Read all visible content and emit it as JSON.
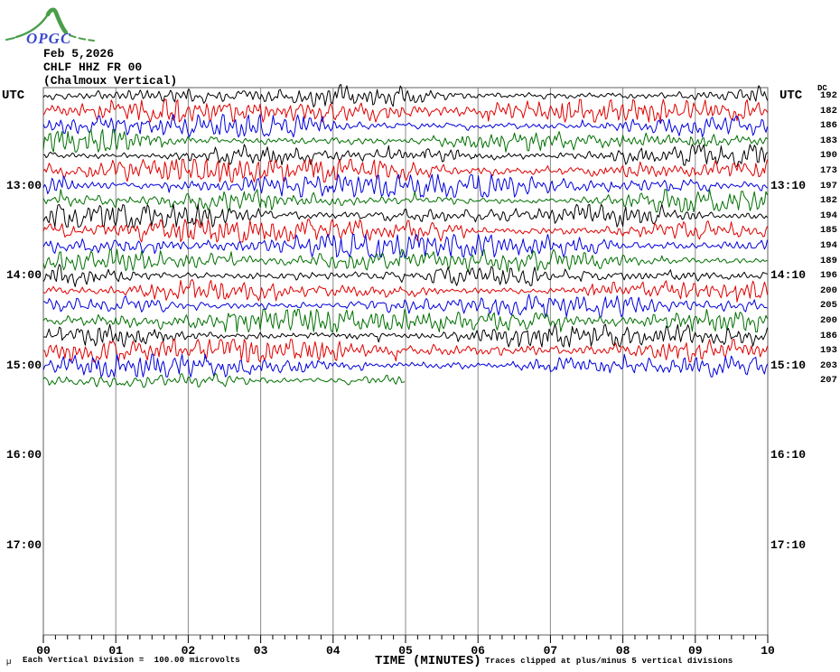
{
  "logo": {
    "text": "OPGC"
  },
  "header": {
    "date": "Feb 5,2026",
    "station": "CHLF HHZ FR 00",
    "location": "(Chalmoux Vertical)"
  },
  "axis_headers": {
    "utc_left": "UTC",
    "utc_right": "UTC",
    "dc": "DC"
  },
  "footer": {
    "micro_mark": "µ",
    "scale_note": "Each Vertical Division =  100.00 microvolts",
    "x_title": "TIME (MINUTES)",
    "clip_note": "Traces clipped at plus/minus 5 vertical divisions"
  },
  "palette": {
    "black": "#000000",
    "red": "#e00000",
    "blue": "#0000dd",
    "green": "#007000",
    "grid": "#8a8a8a",
    "frame": "#606060",
    "tick": "#000000",
    "logo_green": "#4a9e4a",
    "logo_blue": "#3b4bc8"
  },
  "chart_data": {
    "type": "line",
    "subtype": "helicorder-seismogram",
    "title": "CHLF HHZ FR 00 (Chalmoux Vertical) Feb 5,2026",
    "xlabel": "TIME (MINUTES)",
    "x_range_minutes": [
      0,
      10
    ],
    "x_tick_labels": [
      "00",
      "01",
      "02",
      "03",
      "04",
      "05",
      "06",
      "07",
      "08",
      "09",
      "10"
    ],
    "minor_ticks_per_minute": 6,
    "minutes_per_trace": 10,
    "rows_per_hour": 6,
    "first_trace_start_utc": "12:00",
    "grid": "vertical minute gridlines, full plot height",
    "left_hour_labels": [
      {
        "row": 6,
        "label": "13:00"
      },
      {
        "row": 12,
        "label": "14:00"
      },
      {
        "row": 18,
        "label": "15:00"
      },
      {
        "row": 24,
        "label": "16:00"
      },
      {
        "row": 30,
        "label": "17:00"
      }
    ],
    "right_hour_labels": [
      {
        "row": 6,
        "label": "13:10"
      },
      {
        "row": 12,
        "label": "14:10"
      },
      {
        "row": 18,
        "label": "15:10"
      },
      {
        "row": 24,
        "label": "16:10"
      },
      {
        "row": 30,
        "label": "17:10"
      }
    ],
    "traces": [
      {
        "row": 0,
        "start_utc": "12:00",
        "color": "black",
        "dc": 192,
        "end_minute": 10,
        "amp": 1.0,
        "seed": 101
      },
      {
        "row": 1,
        "start_utc": "12:10",
        "color": "red",
        "dc": 182,
        "end_minute": 10,
        "amp": 1.1,
        "seed": 102
      },
      {
        "row": 2,
        "start_utc": "12:20",
        "color": "blue",
        "dc": 186,
        "end_minute": 10,
        "amp": 0.95,
        "seed": 103
      },
      {
        "row": 3,
        "start_utc": "12:30",
        "color": "green",
        "dc": 183,
        "end_minute": 10,
        "amp": 1.0,
        "seed": 104
      },
      {
        "row": 4,
        "start_utc": "12:40",
        "color": "black",
        "dc": 190,
        "end_minute": 10,
        "amp": 0.9,
        "seed": 105
      },
      {
        "row": 5,
        "start_utc": "12:50",
        "color": "red",
        "dc": 173,
        "end_minute": 10,
        "amp": 1.2,
        "seed": 106
      },
      {
        "row": 6,
        "start_utc": "13:00",
        "color": "blue",
        "dc": 197,
        "end_minute": 10,
        "amp": 1.05,
        "seed": 107
      },
      {
        "row": 7,
        "start_utc": "13:10",
        "color": "green",
        "dc": 182,
        "end_minute": 10,
        "amp": 1.0,
        "seed": 108
      },
      {
        "row": 8,
        "start_utc": "13:20",
        "color": "black",
        "dc": 194,
        "end_minute": 10,
        "amp": 1.15,
        "seed": 109
      },
      {
        "row": 9,
        "start_utc": "13:30",
        "color": "red",
        "dc": 185,
        "end_minute": 10,
        "amp": 1.1,
        "seed": 110
      },
      {
        "row": 10,
        "start_utc": "13:40",
        "color": "blue",
        "dc": 194,
        "end_minute": 10,
        "amp": 1.05,
        "seed": 111
      },
      {
        "row": 11,
        "start_utc": "13:50",
        "color": "green",
        "dc": 189,
        "end_minute": 10,
        "amp": 0.95,
        "seed": 112
      },
      {
        "row": 12,
        "start_utc": "14:00",
        "color": "black",
        "dc": 196,
        "end_minute": 10,
        "amp": 1.0,
        "seed": 113
      },
      {
        "row": 13,
        "start_utc": "14:10",
        "color": "red",
        "dc": 200,
        "end_minute": 10,
        "amp": 0.95,
        "seed": 114
      },
      {
        "row": 14,
        "start_utc": "14:20",
        "color": "blue",
        "dc": 205,
        "end_minute": 10,
        "amp": 1.0,
        "seed": 115
      },
      {
        "row": 15,
        "start_utc": "14:30",
        "color": "green",
        "dc": 200,
        "end_minute": 10,
        "amp": 1.05,
        "seed": 116
      },
      {
        "row": 16,
        "start_utc": "14:40",
        "color": "black",
        "dc": 186,
        "end_minute": 10,
        "amp": 0.95,
        "seed": 117
      },
      {
        "row": 17,
        "start_utc": "14:50",
        "color": "red",
        "dc": 193,
        "end_minute": 10,
        "amp": 1.05,
        "seed": 118
      },
      {
        "row": 18,
        "start_utc": "15:00",
        "color": "blue",
        "dc": 203,
        "end_minute": 10,
        "amp": 1.0,
        "seed": 119
      },
      {
        "row": 19,
        "start_utc": "15:10",
        "color": "green",
        "dc": 207,
        "end_minute": 5,
        "amp": 0.55,
        "seed": 120
      }
    ],
    "scale_note": "Each Vertical Division =  100.00 microvolts",
    "clip_note": "Traces clipped at plus/minus 5 vertical divisions"
  }
}
